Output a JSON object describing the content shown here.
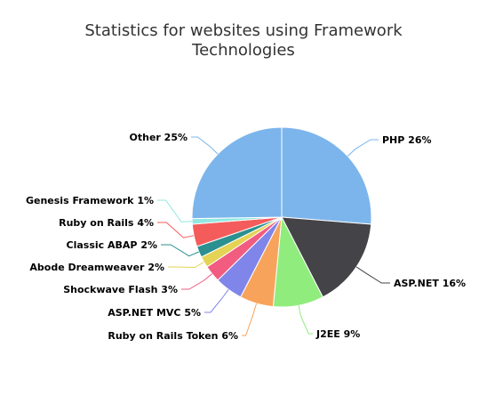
{
  "chart_data": {
    "type": "pie",
    "title_lines": [
      "Statistics for websites using Framework",
      "Technologies"
    ],
    "start": "top, clockwise",
    "slices": [
      {
        "name": "PHP",
        "label": "PHP 26%",
        "value": 26,
        "color": "#7cb5ec"
      },
      {
        "name": "ASP.NET",
        "label": "ASP.NET 16%",
        "value": 16,
        "color": "#434348"
      },
      {
        "name": "J2EE",
        "label": "J2EE 9%",
        "value": 9,
        "color": "#90ed7d"
      },
      {
        "name": "Ruby on Rails Token",
        "label": "Ruby on Rails Token 6%",
        "value": 6,
        "color": "#f7a35c"
      },
      {
        "name": "ASP.NET MVC",
        "label": "ASP.NET MVC 5%",
        "value": 5,
        "color": "#8085e9"
      },
      {
        "name": "Shockwave Flash",
        "label": "Shockwave Flash 3%",
        "value": 3,
        "color": "#f15c80"
      },
      {
        "name": "Abode Dreamweaver",
        "label": "Abode Dreamweaver 2%",
        "value": 2,
        "color": "#e4d354"
      },
      {
        "name": "Classic ABAP",
        "label": "Classic ABAP 2%",
        "value": 2,
        "color": "#2b908f"
      },
      {
        "name": "Ruby on Rails",
        "label": "Ruby on Rails 4%",
        "value": 4,
        "color": "#f45b5b"
      },
      {
        "name": "Genesis Framework",
        "label": "Genesis Framework 1%",
        "value": 1,
        "color": "#91e8e1"
      },
      {
        "name": "Other",
        "label": "Other 25%",
        "value": 25,
        "color": "#7cb5ec"
      }
    ]
  }
}
